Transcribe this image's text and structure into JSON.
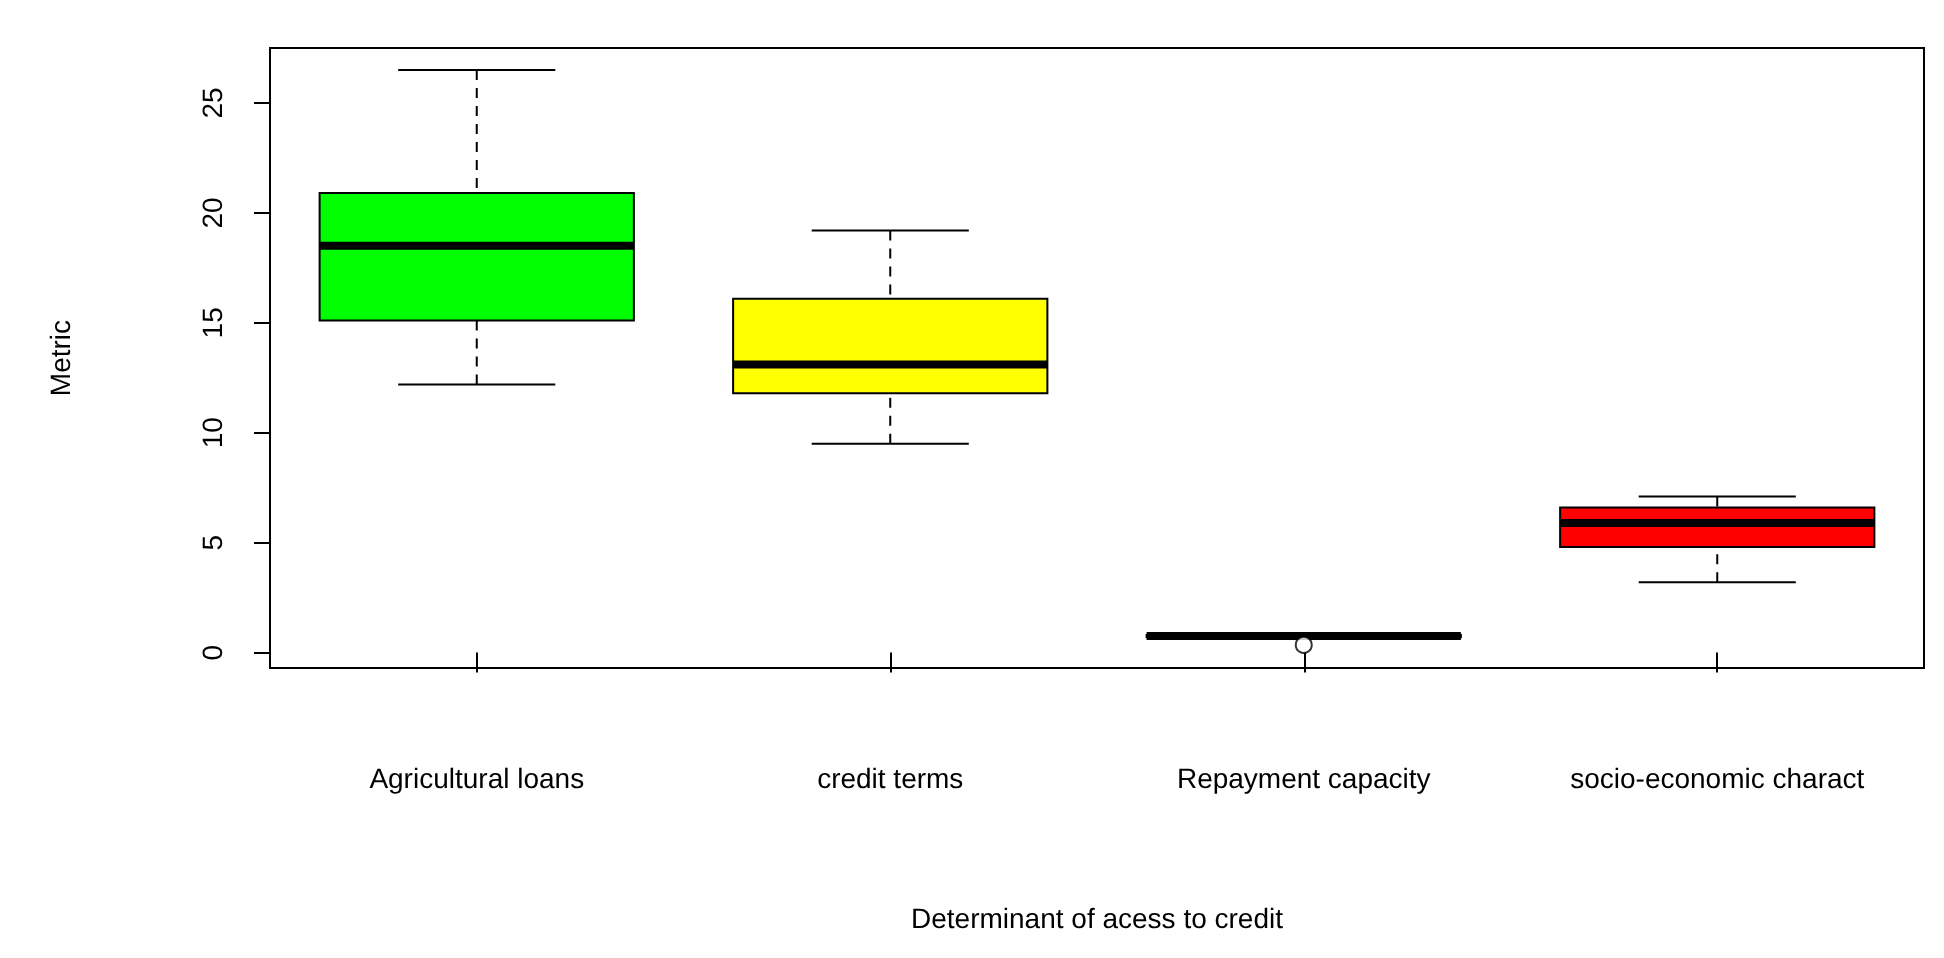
{
  "chart_data": {
    "type": "box",
    "xlabel": "Determinant of acess to credit",
    "ylabel": "Metric",
    "categories": [
      "Agricultural loans",
      "credit terms",
      "Repayment capacity",
      "socio-economic charact"
    ],
    "boxes": [
      {
        "low": 12.2,
        "q1": 15.1,
        "median": 18.5,
        "q3": 20.9,
        "high": 26.5
      },
      {
        "low": 9.5,
        "q1": 11.8,
        "median": 13.1,
        "q3": 16.1,
        "high": 19.2
      },
      {
        "low": 0.7,
        "q1": 0.7,
        "median": 0.75,
        "q3": 0.8,
        "high": 0.8,
        "outliers": [
          0.35
        ]
      },
      {
        "low": 3.2,
        "q1": 4.8,
        "median": 5.9,
        "q3": 6.6,
        "high": 7.1
      }
    ],
    "colors": [
      "#00ff00",
      "#ffff00",
      "#000000",
      "#ff0000"
    ],
    "ylim": [
      -0.7,
      27.5
    ],
    "yticks": [
      0,
      5,
      10,
      15,
      20,
      25
    ],
    "grid": false
  }
}
